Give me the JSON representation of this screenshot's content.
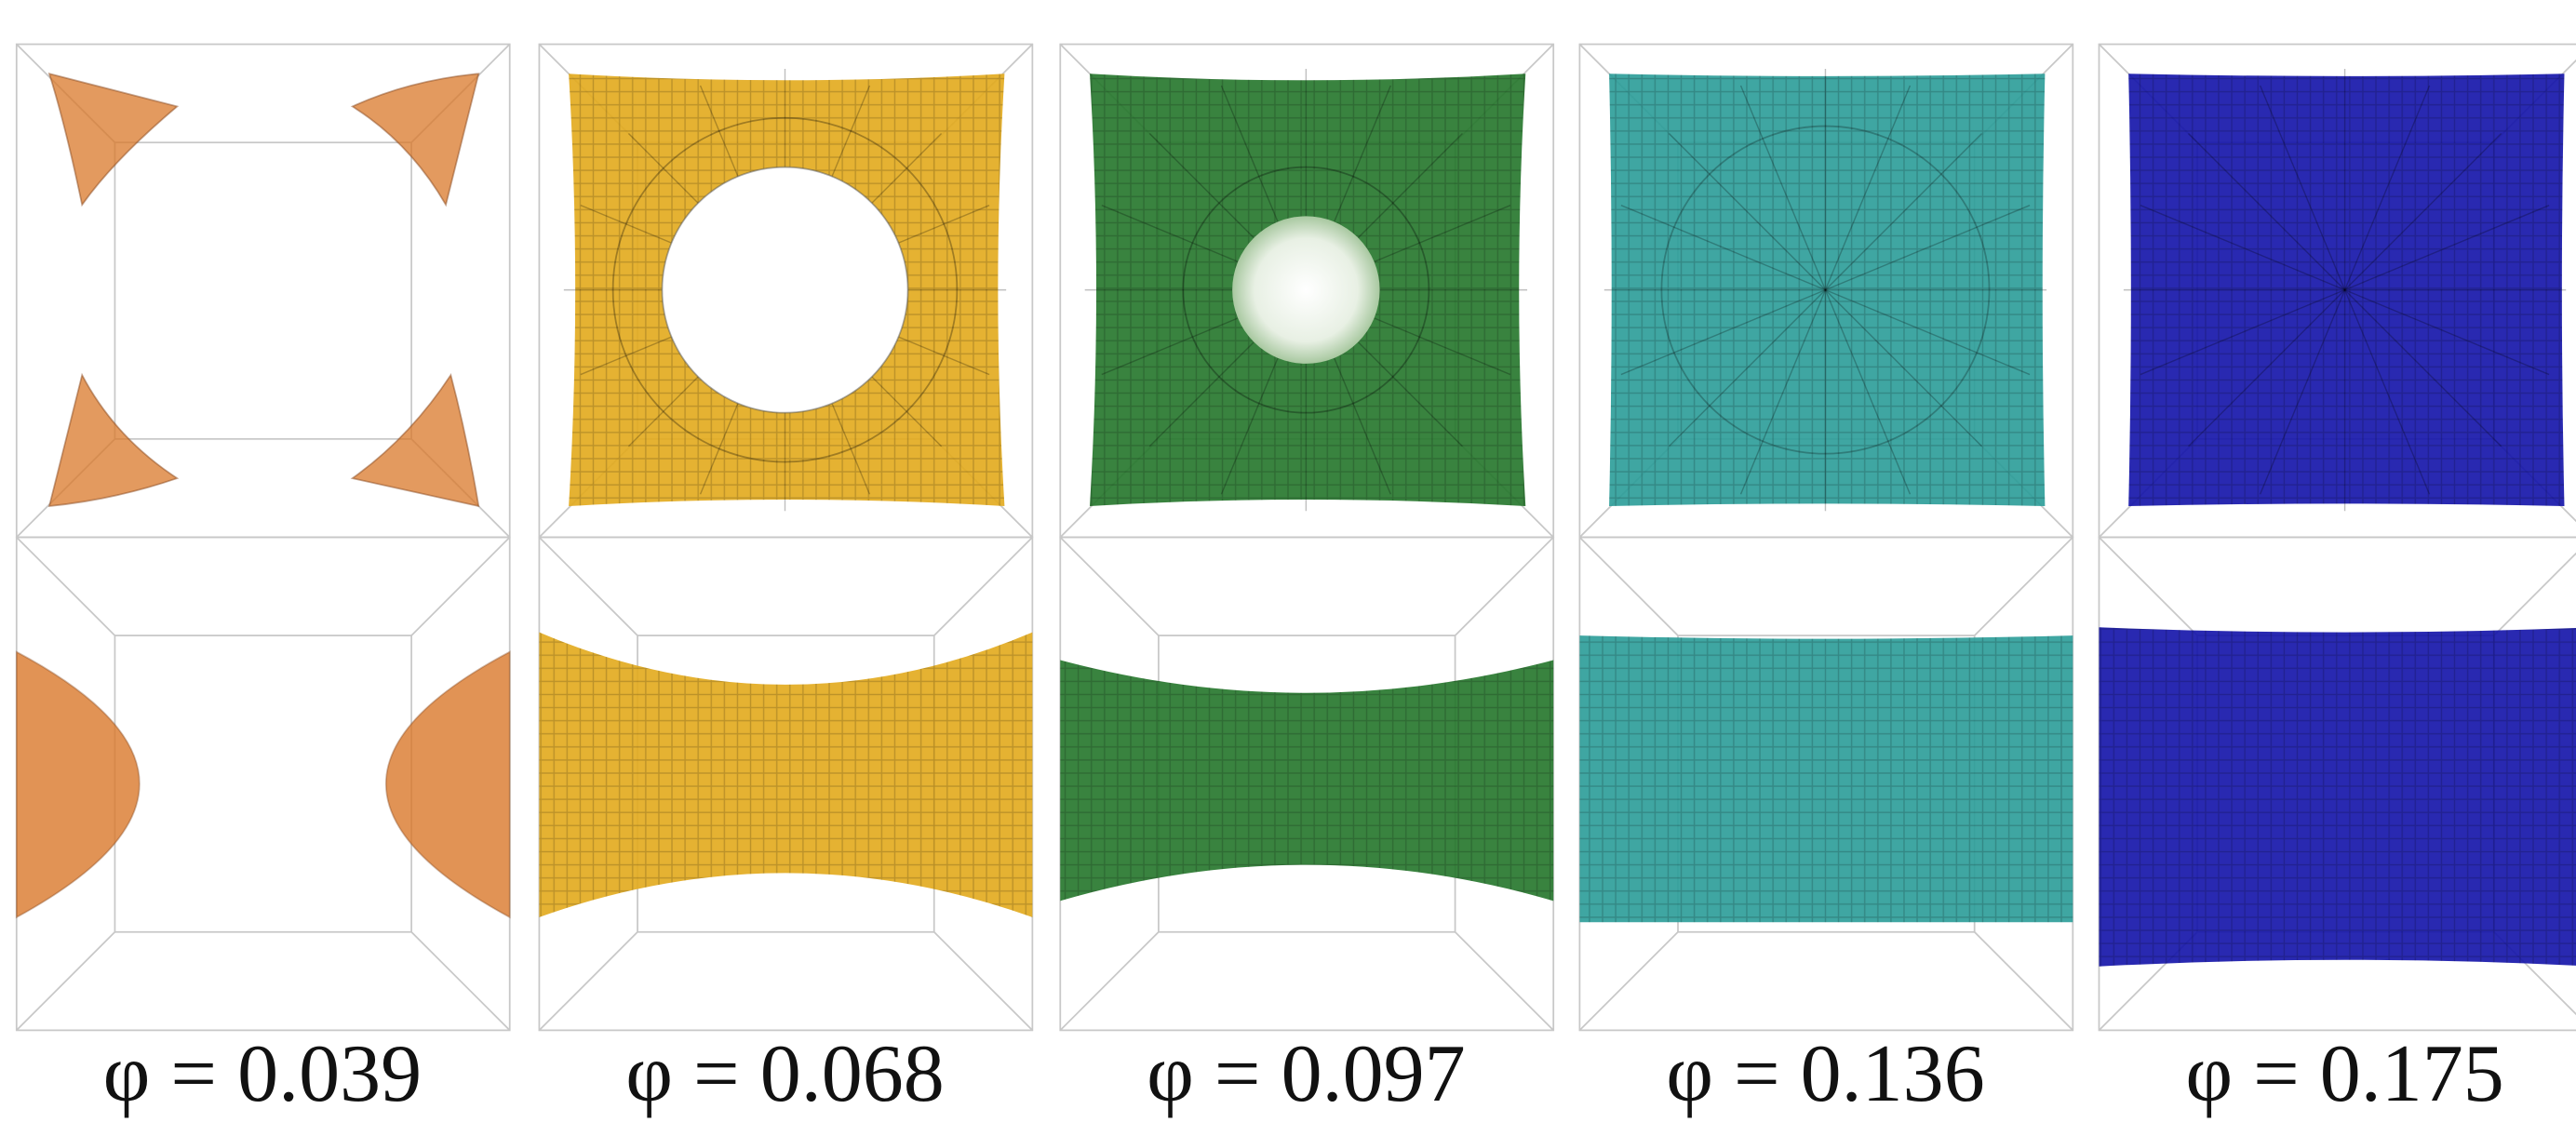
{
  "panels": [
    {
      "label": "φ = 0.039"
    },
    {
      "label": "φ = 0.068"
    },
    {
      "label": "φ = 0.097"
    },
    {
      "label": "φ = 0.136"
    },
    {
      "label": "φ = 0.175"
    }
  ]
}
